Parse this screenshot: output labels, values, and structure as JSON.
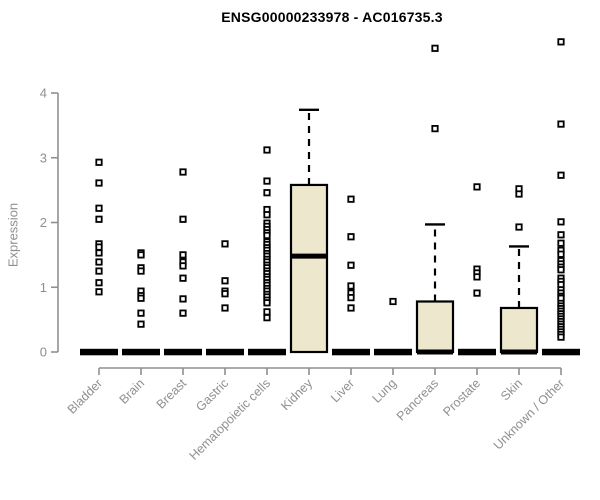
{
  "page": {
    "title": "ENSG00000233978 - AC016735.3"
  },
  "chart_data": {
    "type": "boxplot",
    "title": "ENSG00000233978 - AC016735.3",
    "xlabel": "",
    "ylabel": "Expression",
    "yticks": [
      0,
      1,
      2,
      3,
      4
    ],
    "ylim": [
      0,
      4.85
    ],
    "grid": false,
    "legend": "none",
    "colors": {
      "box_fill": "#ece7cd",
      "box_stroke": "#000000",
      "axis": "#8f8f8f",
      "tick_label": "#8f8f8f",
      "title": "#000000",
      "background": "#ffffff"
    },
    "categories": [
      "Bladder",
      "Brain",
      "Breast",
      "Gastric",
      "Hematopoietic cells",
      "Kidney",
      "Liver",
      "Lung",
      "Pancreas",
      "Prostate",
      "Skin",
      "Unknown / Other"
    ],
    "series": [
      {
        "category": "Bladder",
        "q1": 0,
        "median": 0,
        "q3": 0,
        "whisker_low": 0,
        "whisker_high": 0,
        "outliers": [
          2.93,
          2.61,
          2.22,
          2.05,
          1.67,
          1.62,
          1.53,
          1.39,
          1.25,
          1.07,
          0.93
        ]
      },
      {
        "category": "Brain",
        "q1": 0,
        "median": 0,
        "q3": 0,
        "whisker_low": 0,
        "whisker_high": 0,
        "outliers": [
          1.53,
          1.5,
          1.3,
          1.25,
          0.94,
          0.87,
          0.83,
          0.6,
          0.43
        ]
      },
      {
        "category": "Breast",
        "q1": 0,
        "median": 0,
        "q3": 0,
        "whisker_low": 0,
        "whisker_high": 0,
        "outliers": [
          2.78,
          2.05,
          1.5,
          1.39,
          1.33,
          1.14,
          0.82,
          0.6
        ]
      },
      {
        "category": "Gastric",
        "q1": 0,
        "median": 0,
        "q3": 0,
        "whisker_low": 0,
        "whisker_high": 0,
        "outliers": [
          1.67,
          1.1,
          0.94,
          0.9,
          0.68
        ]
      },
      {
        "category": "Hematopoietic cells",
        "q1": 0,
        "median": 0,
        "q3": 0,
        "whisker_low": 0,
        "whisker_high": 0,
        "outliers": [
          3.12,
          2.64,
          2.46,
          2.2,
          2.12,
          1.99,
          1.94,
          1.89,
          1.84,
          1.8,
          1.7,
          1.66,
          1.61,
          1.57,
          1.52,
          1.48,
          1.43,
          1.39,
          1.34,
          1.3,
          1.25,
          1.21,
          1.16,
          1.12,
          1.07,
          1.03,
          0.98,
          0.94,
          0.89,
          0.85,
          0.8,
          0.76,
          0.62,
          0.53
        ]
      },
      {
        "category": "Kidney",
        "q1": 0,
        "median": 1.48,
        "q3": 2.58,
        "whisker_low": 0,
        "whisker_high": 3.74,
        "outliers": []
      },
      {
        "category": "Liver",
        "q1": 0,
        "median": 0,
        "q3": 0,
        "whisker_low": 0,
        "whisker_high": 0,
        "outliers": [
          2.36,
          1.78,
          1.34,
          1.02,
          0.91,
          0.84,
          0.68
        ]
      },
      {
        "category": "Lung",
        "q1": 0,
        "median": 0,
        "q3": 0,
        "whisker_low": 0,
        "whisker_high": 0,
        "outliers": [
          0.78
        ]
      },
      {
        "category": "Pancreas",
        "q1": 0,
        "median": 0,
        "q3": 0.78,
        "whisker_low": 0,
        "whisker_high": 1.97,
        "outliers": [
          4.69,
          3.45
        ]
      },
      {
        "category": "Prostate",
        "q1": 0,
        "median": 0,
        "q3": 0,
        "whisker_low": 0,
        "whisker_high": 0,
        "outliers": [
          2.55,
          1.28,
          1.22,
          1.16,
          0.91
        ]
      },
      {
        "category": "Skin",
        "q1": 0,
        "median": 0,
        "q3": 0.68,
        "whisker_low": 0,
        "whisker_high": 1.63,
        "outliers": [
          2.52,
          2.44,
          1.93
        ]
      },
      {
        "category": "Unknown / Other",
        "q1": 0,
        "median": 0,
        "q3": 0,
        "whisker_low": 0,
        "whisker_high": 0,
        "outliers": [
          4.79,
          3.52,
          2.73,
          2.01,
          1.81,
          1.68,
          1.57,
          1.51,
          1.41,
          1.36,
          1.31,
          1.27,
          1.14,
          1.09,
          1.04,
          0.96,
          0.91,
          0.86,
          0.83,
          0.75,
          0.71,
          0.67,
          0.63,
          0.59,
          0.55,
          0.51,
          0.47,
          0.43,
          0.39,
          0.35,
          0.31,
          0.27,
          0.23
        ]
      }
    ]
  }
}
